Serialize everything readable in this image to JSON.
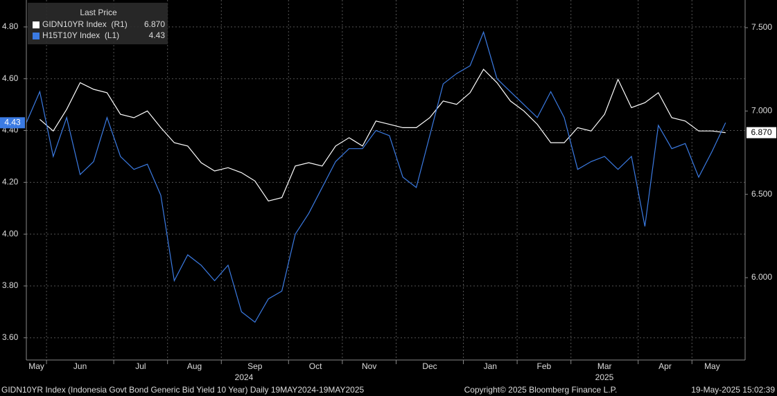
{
  "chart_data": {
    "type": "line",
    "legend_title": "Last Price",
    "categories": [
      "May",
      null,
      "Jun",
      null,
      null,
      null,
      null,
      "Jul",
      null,
      null,
      null,
      "Aug",
      null,
      null,
      null,
      "Sep",
      null,
      null,
      null,
      null,
      "Oct",
      null,
      null,
      null,
      "Nov",
      null,
      null,
      null,
      "Dec",
      null,
      null,
      null,
      null,
      "Jan",
      null,
      null,
      null,
      "Feb",
      null,
      null,
      null,
      "Mar",
      null,
      null,
      null,
      null,
      "Apr",
      null,
      null,
      null,
      "May",
      null,
      null
    ],
    "year_labels": [
      "2024",
      "2025"
    ],
    "series": [
      {
        "name": "GIDN10YR Index  (R1)",
        "color": "#ffffff",
        "axis": "y2",
        "values": [
          null,
          6.95,
          6.88,
          7.01,
          7.17,
          7.13,
          7.11,
          6.98,
          6.96,
          7.0,
          6.9,
          6.81,
          6.79,
          6.69,
          6.64,
          6.66,
          6.63,
          6.58,
          6.46,
          6.48,
          6.67,
          6.69,
          6.67,
          6.79,
          6.84,
          6.79,
          6.94,
          6.92,
          6.9,
          6.9,
          6.96,
          7.06,
          7.04,
          7.11,
          7.25,
          7.17,
          7.06,
          7.0,
          6.92,
          6.81,
          6.81,
          6.9,
          6.88,
          6.98,
          7.19,
          7.02,
          7.05,
          7.11,
          6.96,
          6.94,
          6.88,
          6.88,
          6.87
        ],
        "value_labels": [
          null,
          null,
          null,
          null,
          null,
          null,
          null,
          null,
          null,
          null,
          null,
          null,
          null,
          null,
          null,
          null,
          null,
          null,
          null,
          null,
          null,
          null,
          null,
          null,
          null,
          null,
          null,
          null,
          null,
          null,
          null,
          null,
          null,
          null,
          null,
          null,
          null,
          null,
          null,
          null,
          null,
          null,
          null,
          null,
          null,
          null,
          null,
          null,
          null,
          null,
          null,
          null,
          "6.870"
        ]
      },
      {
        "name": "H15T10Y Index  (L1)",
        "color": "#3b7be3",
        "values": [
          4.43,
          4.55,
          4.3,
          4.45,
          4.23,
          4.28,
          4.45,
          4.3,
          4.25,
          4.27,
          4.15,
          3.82,
          3.92,
          3.88,
          3.82,
          3.88,
          3.7,
          3.66,
          3.75,
          3.78,
          4.0,
          4.08,
          4.18,
          4.28,
          4.33,
          4.33,
          4.4,
          4.38,
          4.22,
          4.18,
          4.38,
          4.58,
          4.62,
          4.65,
          4.78,
          4.6,
          4.55,
          4.5,
          4.45,
          4.55,
          4.45,
          4.25,
          4.28,
          4.3,
          4.25,
          4.3,
          4.03,
          4.42,
          4.33,
          4.35,
          4.22,
          4.32,
          4.43
        ]
      }
    ],
    "ylim": [
      3.514,
      4.904
    ],
    "yticks": [
      {
        "value": 3.6,
        "label": "3.60"
      },
      {
        "value": 3.8,
        "label": "3.80"
      },
      {
        "value": 4.0,
        "label": "4.00"
      },
      {
        "value": 4.2,
        "label": "4.20"
      },
      {
        "value": 4.4,
        "label": "4.40"
      },
      {
        "value": 4.6,
        "label": "4.60"
      },
      {
        "value": 4.8,
        "label": "4.80"
      }
    ],
    "y2lim": [
      5.506,
      7.666
    ],
    "y2ticks": [
      {
        "value": 6.0,
        "label": "6.000"
      },
      {
        "value": 6.5,
        "label": "6.500"
      },
      {
        "value": 7.0,
        "label": "7.000"
      },
      {
        "value": 7.5,
        "label": "7.500"
      }
    ],
    "grid": true,
    "footer_left": "GIDN10YR Index (Indonesia Govt Bond Generic Bid Yield 10 Year)  Daily 19MAY2024-19MAY2025",
    "footer_center": "Copyright© 2025 Bloomberg Finance L.P.",
    "footer_right": "19-May-2025 15:02:39"
  }
}
